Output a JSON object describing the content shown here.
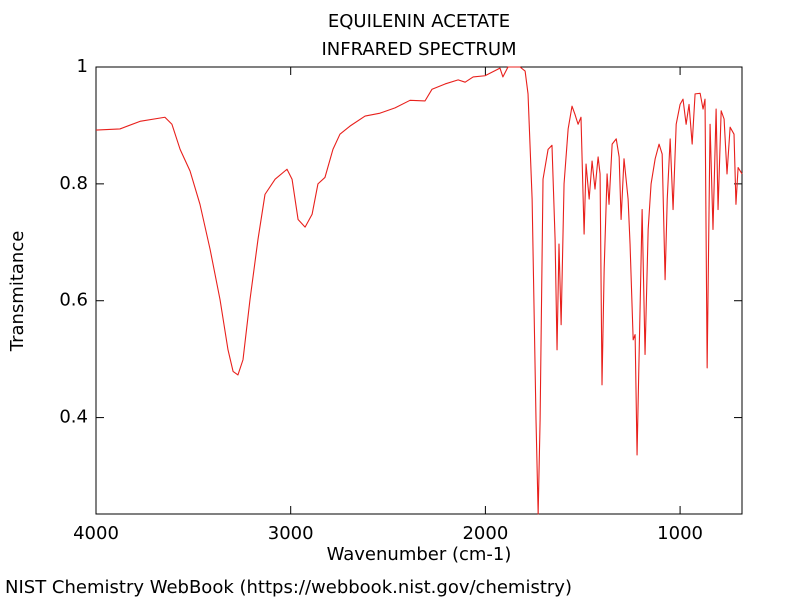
{
  "chart_data": {
    "type": "line",
    "title": "EQUILENIN ACETATE",
    "subtitle": "INFRARED SPECTRUM",
    "x_label": "Wavenumber (cm-1)",
    "y_label": "Transmitance",
    "footer": "NIST Chemistry WebBook (https://webbook.nist.gov/chemistry)",
    "color": "#e8201c",
    "xlim": [
      4000,
      682
    ],
    "xticks": [
      4000,
      3000,
      2000,
      1000
    ],
    "ylim": [
      0.235,
      1.0
    ],
    "yticks": [
      0.4,
      0.6,
      0.8,
      1
    ],
    "x": [
      4000,
      3877,
      3774,
      3646,
      3610,
      3568,
      3517,
      3466,
      3414,
      3363,
      3322,
      3296,
      3271,
      3245,
      3209,
      3168,
      3132,
      3080,
      3019,
      2993,
      2962,
      2926,
      2890,
      2860,
      2824,
      2783,
      2747,
      2695,
      2618,
      2541,
      2464,
      2387,
      2310,
      2274,
      2207,
      2140,
      2104,
      2063,
      2002,
      1925,
      1910,
      1884,
      1822,
      1796,
      1781,
      1760,
      1740,
      1729,
      1719,
      1704,
      1678,
      1658,
      1642,
      1632,
      1622,
      1611,
      1596,
      1575,
      1555,
      1540,
      1524,
      1509,
      1493,
      1483,
      1467,
      1452,
      1437,
      1421,
      1411,
      1401,
      1390,
      1375,
      1365,
      1349,
      1328,
      1313,
      1303,
      1288,
      1267,
      1257,
      1241,
      1231,
      1221,
      1211,
      1195,
      1180,
      1164,
      1149,
      1128,
      1108,
      1092,
      1077,
      1066,
      1051,
      1036,
      1020,
      1000,
      985,
      969,
      954,
      938,
      923,
      897,
      882,
      872,
      861,
      846,
      831,
      815,
      805,
      789,
      774,
      759,
      743,
      723,
      713,
      702,
      682
    ],
    "values": [
      0.892,
      0.894,
      0.907,
      0.914,
      0.902,
      0.859,
      0.822,
      0.765,
      0.688,
      0.602,
      0.516,
      0.479,
      0.473,
      0.499,
      0.602,
      0.705,
      0.782,
      0.808,
      0.825,
      0.808,
      0.739,
      0.726,
      0.748,
      0.8,
      0.811,
      0.859,
      0.885,
      0.899,
      0.916,
      0.921,
      0.93,
      0.943,
      0.942,
      0.962,
      0.971,
      0.978,
      0.974,
      0.983,
      0.985,
      0.998,
      0.983,
      1.0,
      1.0,
      0.993,
      0.954,
      0.774,
      0.396,
      0.235,
      0.396,
      0.808,
      0.859,
      0.866,
      0.705,
      0.516,
      0.697,
      0.559,
      0.8,
      0.894,
      0.933,
      0.919,
      0.902,
      0.914,
      0.714,
      0.834,
      0.774,
      0.839,
      0.791,
      0.846,
      0.817,
      0.456,
      0.654,
      0.817,
      0.765,
      0.868,
      0.877,
      0.846,
      0.739,
      0.843,
      0.774,
      0.697,
      0.533,
      0.542,
      0.336,
      0.499,
      0.756,
      0.508,
      0.722,
      0.8,
      0.843,
      0.868,
      0.851,
      0.636,
      0.774,
      0.877,
      0.756,
      0.902,
      0.936,
      0.945,
      0.902,
      0.936,
      0.868,
      0.954,
      0.955,
      0.928,
      0.945,
      0.485,
      0.902,
      0.722,
      0.928,
      0.756,
      0.925,
      0.911,
      0.817,
      0.897,
      0.885,
      0.765,
      0.828,
      0.817
    ]
  }
}
